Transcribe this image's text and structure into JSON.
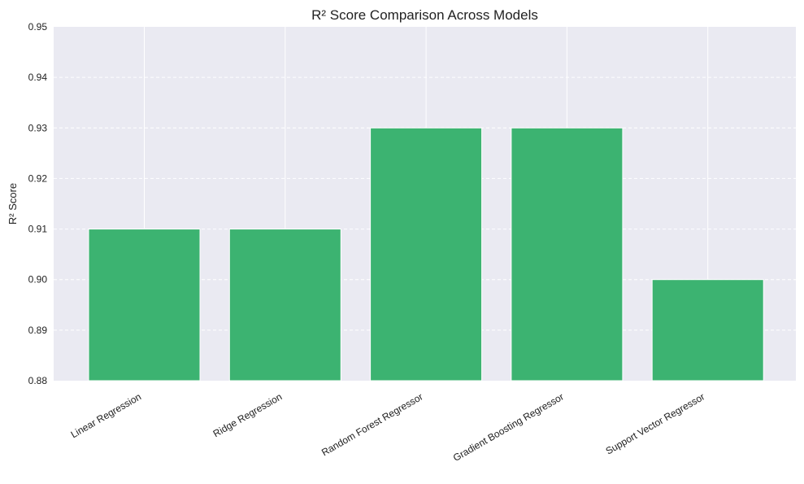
{
  "chart_data": {
    "type": "bar",
    "title": "R² Score Comparison Across Models",
    "xlabel": "",
    "ylabel": "R² Score",
    "categories": [
      "Linear Regression",
      "Ridge Regression",
      "Random Forest Regressor",
      "Gradient Boosting Regressor",
      "Support Vector Regressor"
    ],
    "values": [
      0.91,
      0.91,
      0.93,
      0.93,
      0.9
    ],
    "ylim": [
      0.88,
      0.95
    ],
    "yticks": [
      "0.88",
      "0.89",
      "0.90",
      "0.91",
      "0.92",
      "0.93",
      "0.94",
      "0.95"
    ],
    "bar_color": "#3cb371",
    "plot_background": "#eaeaf2",
    "grid": true,
    "grid_style": "dashed horizontal, solid vertical at categories",
    "legend": "none"
  }
}
